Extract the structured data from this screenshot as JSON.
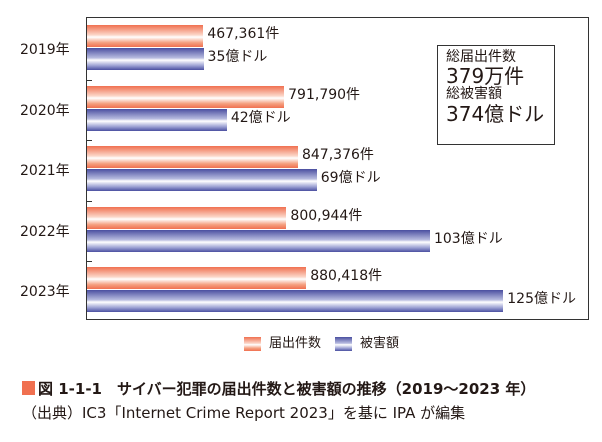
{
  "chart_data": {
    "type": "bar",
    "orientation": "horizontal",
    "categories": [
      "2019年",
      "2020年",
      "2021年",
      "2022年",
      "2023年"
    ],
    "series": [
      {
        "name": "届出件数",
        "values": [
          467361,
          791790,
          847376,
          800944,
          880418
        ],
        "labels": [
          "467,361件",
          "791,790件",
          "847,376件",
          "800,944件",
          "880,418件"
        ],
        "color": "#f07050"
      },
      {
        "name": "被害額",
        "unit": "億ドル",
        "values": [
          35,
          42,
          69,
          103,
          125
        ],
        "labels": [
          "35億ドル",
          "42億ドル",
          "69億ドル",
          "103億ドル",
          "125億ドル"
        ],
        "color": "#4a4fa0"
      }
    ],
    "legend": "bottom",
    "grid": false
  },
  "info_box": {
    "count_label": "総届出件数",
    "count_value": "379万件",
    "amount_label": "総被害額",
    "amount_value": "374億ドル"
  },
  "caption": "図 1-1-1　サイバー犯罪の届出件数と被害額の推移（2019～2023 年）",
  "source": "（出典）IC3「Internet Crime Report 2023」を基に IPA が編集"
}
